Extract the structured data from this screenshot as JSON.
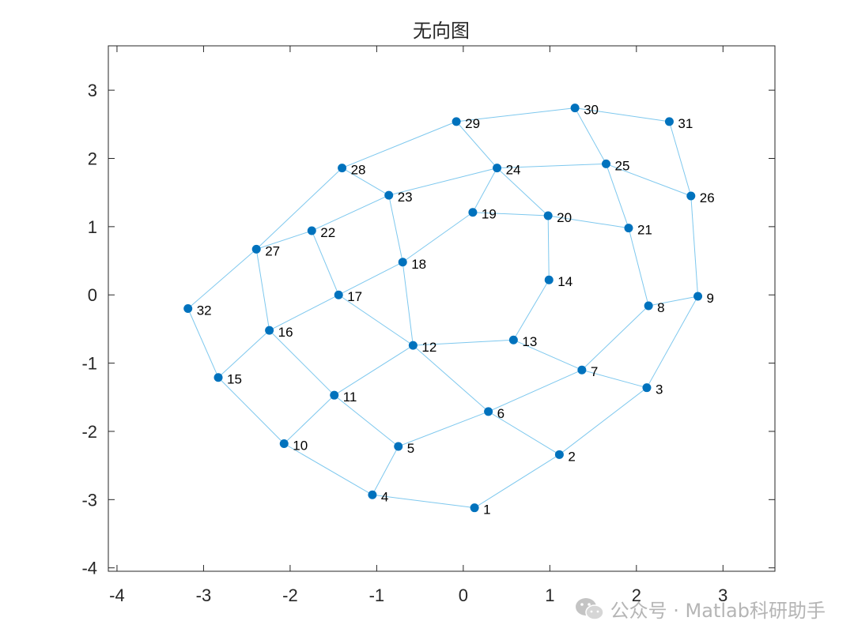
{
  "chart_data": {
    "type": "scatter",
    "graph": "undirected",
    "title": "无向图",
    "xlim": [
      -4.1,
      3.6
    ],
    "ylim": [
      -4.05,
      3.65
    ],
    "xticks": [
      -4,
      -3,
      -2,
      -1,
      0,
      1,
      2,
      3
    ],
    "yticks": [
      -4,
      -3,
      -2,
      -1,
      0,
      1,
      2,
      3
    ],
    "node_color": "#0072BD",
    "edge_color": "#7EC8EE",
    "nodes": [
      {
        "id": "1",
        "x": 0.13,
        "y": -3.12
      },
      {
        "id": "2",
        "x": 1.11,
        "y": -2.34
      },
      {
        "id": "3",
        "x": 2.12,
        "y": -1.36
      },
      {
        "id": "4",
        "x": -1.05,
        "y": -2.93
      },
      {
        "id": "5",
        "x": -0.75,
        "y": -2.22
      },
      {
        "id": "6",
        "x": 0.29,
        "y": -1.71
      },
      {
        "id": "7",
        "x": 1.37,
        "y": -1.1
      },
      {
        "id": "8",
        "x": 2.14,
        "y": -0.16
      },
      {
        "id": "9",
        "x": 2.71,
        "y": -0.02
      },
      {
        "id": "10",
        "x": -2.07,
        "y": -2.18
      },
      {
        "id": "11",
        "x": -1.49,
        "y": -1.47
      },
      {
        "id": "12",
        "x": -0.58,
        "y": -0.74
      },
      {
        "id": "13",
        "x": 0.58,
        "y": -0.66
      },
      {
        "id": "14",
        "x": 0.99,
        "y": 0.22
      },
      {
        "id": "15",
        "x": -2.83,
        "y": -1.21
      },
      {
        "id": "16",
        "x": -2.24,
        "y": -0.52
      },
      {
        "id": "17",
        "x": -1.44,
        "y": 0.0
      },
      {
        "id": "18",
        "x": -0.7,
        "y": 0.48
      },
      {
        "id": "19",
        "x": 0.11,
        "y": 1.21
      },
      {
        "id": "20",
        "x": 0.98,
        "y": 1.16
      },
      {
        "id": "21",
        "x": 1.91,
        "y": 0.98
      },
      {
        "id": "22",
        "x": -1.75,
        "y": 0.94
      },
      {
        "id": "23",
        "x": -0.86,
        "y": 1.46
      },
      {
        "id": "24",
        "x": 0.39,
        "y": 1.86
      },
      {
        "id": "25",
        "x": 1.65,
        "y": 1.92
      },
      {
        "id": "26",
        "x": 2.63,
        "y": 1.45
      },
      {
        "id": "27",
        "x": -2.39,
        "y": 0.67
      },
      {
        "id": "28",
        "x": -1.4,
        "y": 1.86
      },
      {
        "id": "29",
        "x": -0.08,
        "y": 2.54
      },
      {
        "id": "30",
        "x": 1.29,
        "y": 2.74
      },
      {
        "id": "31",
        "x": 2.38,
        "y": 2.54
      },
      {
        "id": "32",
        "x": -3.18,
        "y": -0.2
      }
    ],
    "edges": [
      [
        "1",
        "2"
      ],
      [
        "1",
        "4"
      ],
      [
        "2",
        "3"
      ],
      [
        "2",
        "6"
      ],
      [
        "3",
        "7"
      ],
      [
        "3",
        "9"
      ],
      [
        "4",
        "5"
      ],
      [
        "4",
        "10"
      ],
      [
        "5",
        "6"
      ],
      [
        "5",
        "11"
      ],
      [
        "6",
        "7"
      ],
      [
        "6",
        "12"
      ],
      [
        "7",
        "8"
      ],
      [
        "7",
        "13"
      ],
      [
        "8",
        "9"
      ],
      [
        "8",
        "21"
      ],
      [
        "9",
        "26"
      ],
      [
        "10",
        "11"
      ],
      [
        "10",
        "15"
      ],
      [
        "11",
        "12"
      ],
      [
        "11",
        "16"
      ],
      [
        "12",
        "13"
      ],
      [
        "12",
        "17"
      ],
      [
        "12",
        "18"
      ],
      [
        "13",
        "14"
      ],
      [
        "14",
        "20"
      ],
      [
        "15",
        "16"
      ],
      [
        "15",
        "32"
      ],
      [
        "16",
        "17"
      ],
      [
        "16",
        "27"
      ],
      [
        "17",
        "18"
      ],
      [
        "17",
        "22"
      ],
      [
        "18",
        "19"
      ],
      [
        "18",
        "23"
      ],
      [
        "19",
        "20"
      ],
      [
        "19",
        "24"
      ],
      [
        "20",
        "21"
      ],
      [
        "20",
        "24"
      ],
      [
        "21",
        "25"
      ],
      [
        "22",
        "23"
      ],
      [
        "22",
        "27"
      ],
      [
        "23",
        "24"
      ],
      [
        "23",
        "28"
      ],
      [
        "24",
        "25"
      ],
      [
        "24",
        "29"
      ],
      [
        "25",
        "26"
      ],
      [
        "25",
        "30"
      ],
      [
        "26",
        "31"
      ],
      [
        "27",
        "28"
      ],
      [
        "27",
        "32"
      ],
      [
        "28",
        "29"
      ],
      [
        "29",
        "30"
      ],
      [
        "30",
        "31"
      ]
    ]
  },
  "watermark": {
    "text": "公众号 · Matlab科研助手",
    "icon": "wechat-icon"
  }
}
